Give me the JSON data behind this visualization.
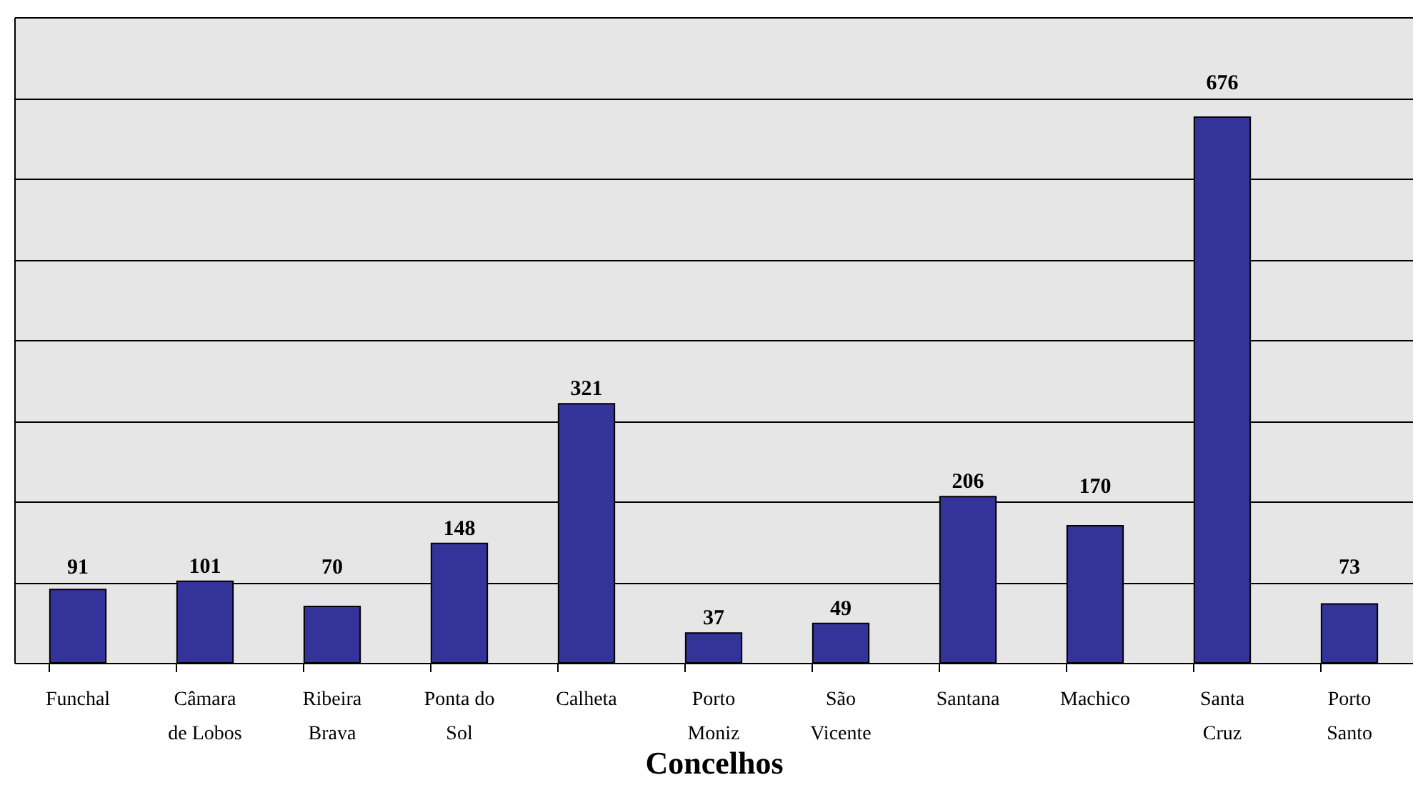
{
  "chart_data": {
    "type": "bar",
    "xlabel": "Concelhos",
    "categories": [
      "Funchal",
      "Câmara de Lobos",
      "Ribeira Brava",
      "Ponta do Sol",
      "Calheta",
      "Porto Moniz",
      "São Vicente",
      "Santana",
      "Machico",
      "Santa Cruz",
      "Porto Santo"
    ],
    "values": [
      91,
      101,
      70,
      148,
      321,
      37,
      49,
      206,
      170,
      676,
      73
    ],
    "color": "#333399",
    "ylim": [
      0,
      800
    ],
    "yticks": [
      {
        "value": 0,
        "label": null
      },
      {
        "value": 100,
        "label": null
      },
      {
        "value": 200,
        "label": null
      },
      {
        "value": 300,
        "label": null
      },
      {
        "value": 400,
        "label": null
      },
      {
        "value": 500,
        "label": null
      },
      {
        "value": 600,
        "label": null
      },
      {
        "value": 700,
        "label": null
      },
      {
        "value": 800,
        "label": null
      }
    ],
    "grid": "y",
    "tick_labels": "x",
    "data_labels": true
  }
}
